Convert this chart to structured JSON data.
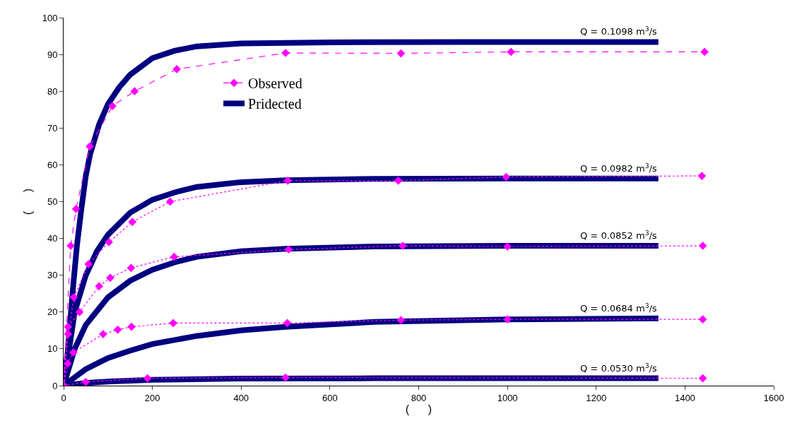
{
  "chart_data": {
    "type": "line",
    "xlabel": "(      )",
    "ylabel": "(      )",
    "xlim": [
      0,
      1600
    ],
    "xticks": [
      0,
      200,
      400,
      600,
      800,
      1000,
      1200,
      1400,
      1600
    ],
    "ylim": [
      0,
      100
    ],
    "yticks": [
      0,
      10,
      20,
      30,
      40,
      50,
      60,
      70,
      80,
      90,
      100
    ],
    "grid": false,
    "legend": "top left",
    "marker": "diamond",
    "annotations": [
      "Q = 0.1098 m$^{3}$/s",
      "Q = 0.0982 m$^{3}$/s",
      "Q = 0.0852 m$^{3}$/s",
      "Q = 0.0684 m$^{3}$/s",
      "Q = 0.0530 m$^{3}$/s"
    ],
    "series": [
      {
        "name": "Pridected",
        "color": "#000080",
        "line_style": "solid",
        "marker": "none",
        "x": [
          0,
          10,
          20,
          30,
          40,
          50,
          60,
          80,
          100,
          125,
          150,
          200,
          250,
          300,
          400,
          600,
          900,
          1340
        ],
        "values": [
          0,
          10,
          25,
          38,
          48,
          57,
          63,
          71,
          76.5,
          81,
          84.5,
          89,
          91,
          92.2,
          93,
          93.3,
          93.4,
          93.4
        ]
      },
      {
        "color": "#000080",
        "line_style": "solid",
        "marker": "none",
        "x": [
          0,
          25,
          50,
          75,
          100,
          150,
          200,
          250,
          300,
          400,
          500,
          700,
          1000,
          1340
        ],
        "values": [
          0,
          20,
          30,
          36.5,
          41,
          47,
          50.5,
          52.5,
          54,
          55.3,
          55.8,
          56.2,
          56.3,
          56.3
        ]
      },
      {
        "color": "#000080",
        "line_style": "solid",
        "marker": "none",
        "x": [
          0,
          25,
          50,
          100,
          150,
          200,
          250,
          300,
          400,
          500,
          700,
          1000,
          1340
        ],
        "values": [
          0,
          10,
          16.5,
          24,
          28.5,
          31.5,
          33.5,
          35,
          36.5,
          37.2,
          37.8,
          38,
          38
        ]
      },
      {
        "color": "#000080",
        "line_style": "solid",
        "marker": "none",
        "x": [
          0,
          50,
          100,
          150,
          200,
          300,
          400,
          500,
          700,
          1000,
          1340
        ],
        "values": [
          0,
          4.5,
          7.5,
          9.5,
          11.3,
          13.5,
          15,
          16,
          17.3,
          18,
          18.3
        ]
      },
      {
        "color": "#000080",
        "line_style": "solid",
        "marker": "none",
        "x": [
          0,
          50,
          100,
          200,
          400,
          700,
          1340
        ],
        "values": [
          0,
          0.7,
          1.1,
          1.6,
          1.9,
          2,
          2
        ]
      },
      {
        "name": "Observed",
        "color": "#ff00ff",
        "line_style": "dashed",
        "x": [
          0,
          16,
          28,
          59,
          110,
          160,
          255,
          500,
          760,
          1008,
          1444
        ],
        "values": [
          0,
          38,
          48,
          65,
          76,
          80,
          86,
          90.4,
          90.3,
          90.7,
          90.7
        ]
      },
      {
        "color": "#ff00ff",
        "line_style": "dotted",
        "x": [
          0,
          10,
          23,
          56,
          102,
          155,
          240,
          505,
          754,
          997,
          1438
        ],
        "values": [
          0,
          14,
          24,
          33,
          39,
          44.5,
          50,
          55.7,
          55.7,
          56.7,
          57
        ]
      },
      {
        "color": "#ff00ff",
        "line_style": "dotted",
        "x": [
          0,
          10,
          36,
          80,
          105,
          152,
          249,
          507,
          764,
          1000,
          1440
        ],
        "values": [
          0,
          16,
          20,
          27,
          29.3,
          32,
          35,
          37,
          38,
          37.8,
          38
        ]
      },
      {
        "color": "#ff00ff",
        "line_style": "dotted",
        "x": [
          0,
          9,
          22,
          89,
          122,
          153,
          247,
          504,
          760,
          1000,
          1440
        ],
        "values": [
          0,
          6,
          9,
          14,
          15.2,
          16,
          17,
          17,
          17.8,
          18,
          18
        ]
      },
      {
        "color": "#ff00ff",
        "line_style": "dotted",
        "x": [
          0,
          50,
          189,
          500,
          1440
        ],
        "values": [
          0,
          1,
          2,
          2.2,
          2
        ]
      }
    ]
  }
}
